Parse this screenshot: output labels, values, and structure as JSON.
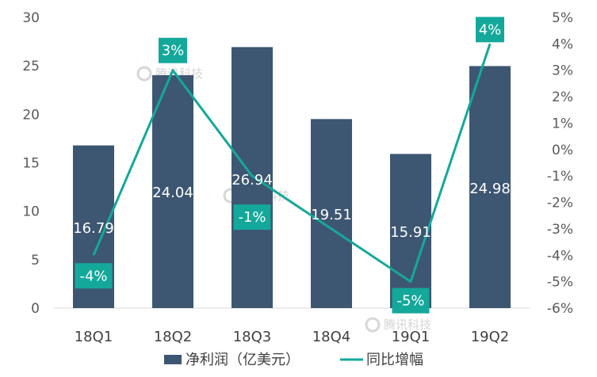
{
  "chart_data": {
    "type": "bar",
    "categories": [
      "18Q1",
      "18Q2",
      "18Q3",
      "18Q4",
      "19Q1",
      "19Q2"
    ],
    "series": [
      {
        "name": "净利润（亿美元）",
        "type": "bar",
        "axis": "left",
        "values": [
          16.79,
          24.04,
          26.94,
          19.51,
          15.91,
          24.98
        ],
        "data_labels": [
          "16.79",
          "24.04",
          "26.94",
          "19.51",
          "15.91",
          "24.98"
        ]
      },
      {
        "name": "同比增幅",
        "type": "line",
        "axis": "right",
        "values": [
          -4,
          3,
          -1,
          null,
          -5,
          4
        ],
        "data_labels": [
          "-4%",
          "3%",
          "-1%",
          null,
          "-5%",
          "4%"
        ]
      }
    ],
    "y_left": {
      "range": [
        0,
        30
      ],
      "ticks": [
        0,
        5,
        10,
        15,
        20,
        25,
        30
      ],
      "tick_labels": [
        "0",
        "5",
        "10",
        "15",
        "20",
        "25",
        "30"
      ]
    },
    "y_right": {
      "range": [
        -6,
        5
      ],
      "ticks": [
        5,
        4,
        3,
        2,
        1,
        0,
        -1,
        -2,
        -3,
        -4,
        -5,
        -6
      ],
      "tick_labels": [
        "5%",
        "4%",
        "3%",
        "2%",
        "1%",
        "0%",
        "-1%",
        "-2%",
        "-3%",
        "-4%",
        "-5%",
        "-6%"
      ]
    },
    "legend": {
      "position": "bottom"
    },
    "grid": false,
    "colors": {
      "bar": "#3d5672",
      "line": "#14a89a",
      "label_box": "#14a89a"
    },
    "title": "",
    "xlabel": "",
    "ylabel": ""
  },
  "watermark": {
    "text": "腾讯科技"
  }
}
